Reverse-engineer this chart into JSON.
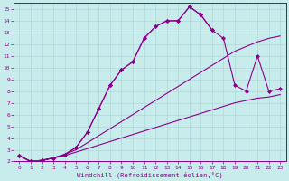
{
  "xlabel": "Windchill (Refroidissement éolien,°C)",
  "bg_color": "#c8ecec",
  "grid_color": "#b0d8d8",
  "line_color": "#8b008b",
  "xlim": [
    -0.5,
    23.5
  ],
  "ylim": [
    2,
    15.5
  ],
  "xticks": [
    0,
    1,
    2,
    3,
    4,
    5,
    6,
    7,
    8,
    9,
    10,
    11,
    12,
    13,
    14,
    15,
    16,
    17,
    18,
    19,
    20,
    21,
    22,
    23
  ],
  "yticks": [
    2,
    3,
    4,
    5,
    6,
    7,
    8,
    9,
    10,
    11,
    12,
    13,
    14,
    15
  ],
  "line1_x": [
    0,
    1,
    2,
    3,
    4,
    5,
    6,
    7,
    8,
    9,
    10,
    11,
    12,
    13,
    14,
    15,
    16,
    17,
    18,
    19,
    20,
    21,
    22,
    23
  ],
  "line1_y": [
    2.5,
    2.0,
    2.1,
    2.3,
    2.5,
    2.8,
    3.1,
    3.4,
    3.7,
    4.0,
    4.3,
    4.6,
    4.9,
    5.2,
    5.5,
    5.8,
    6.1,
    6.4,
    6.7,
    7.0,
    7.2,
    7.4,
    7.5,
    7.7
  ],
  "line2_x": [
    0,
    1,
    2,
    3,
    4,
    5,
    6,
    7,
    8,
    9,
    10,
    11,
    12,
    13,
    14,
    15,
    16,
    17,
    18,
    19,
    20,
    21,
    22,
    23
  ],
  "line2_y": [
    2.5,
    2.0,
    2.1,
    2.3,
    2.6,
    3.0,
    3.6,
    4.2,
    4.8,
    5.4,
    6.0,
    6.6,
    7.2,
    7.8,
    8.4,
    9.0,
    9.6,
    10.2,
    10.8,
    11.4,
    11.8,
    12.2,
    12.5,
    12.7
  ],
  "line3_x": [
    0,
    1,
    2,
    3,
    4,
    5,
    6,
    7,
    8,
    9,
    10,
    11,
    12,
    13,
    14,
    15,
    16,
    17,
    18,
    19,
    20,
    21,
    22,
    23
  ],
  "line3_y": [
    2.5,
    2.0,
    2.1,
    2.3,
    2.6,
    3.2,
    4.5,
    6.5,
    8.5,
    9.8,
    10.5,
    12.5,
    13.5,
    14.0,
    14.0,
    15.2,
    14.5,
    13.2,
    12.5,
    8.5,
    8.0,
    11.0,
    8.0,
    8.2
  ],
  "line4_x": [
    0,
    1,
    2,
    3,
    4,
    5,
    6,
    7,
    8,
    9,
    10,
    11,
    12,
    13,
    14,
    15,
    16,
    17
  ],
  "line4_y": [
    2.5,
    2.0,
    2.1,
    2.3,
    2.6,
    3.2,
    4.5,
    6.5,
    8.5,
    9.8,
    10.5,
    12.5,
    13.5,
    14.0,
    14.0,
    15.2,
    14.5,
    13.2
  ]
}
